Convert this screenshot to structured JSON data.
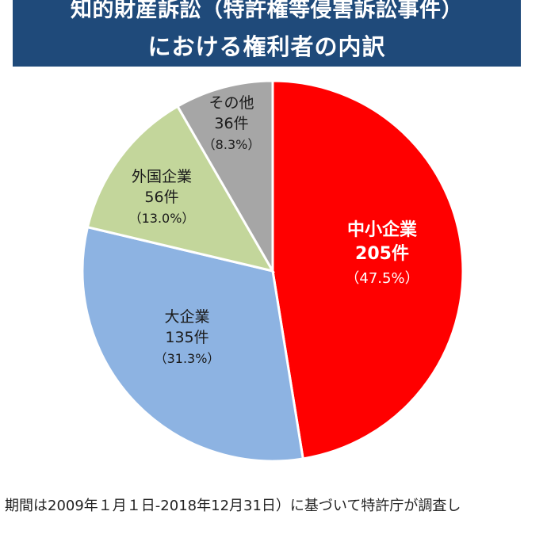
{
  "header": {
    "title_line1": "知的財産訴訟（特許権等侵害訴訟事件）",
    "title_line2": "における権利者の内訳"
  },
  "chart_data": {
    "type": "pie",
    "title": "知的財産訴訟（特許権等侵害訴訟事件）における権利者の内訳",
    "start_angle_deg": 0,
    "direction": "clockwise",
    "slices": [
      {
        "label": "中小企業",
        "count_label": "205件",
        "pct_label": "（47.5%）",
        "value": 205,
        "percent": 47.5,
        "color": "#ff0000",
        "text_color": "#ffffff",
        "bold": true
      },
      {
        "label": "大企業",
        "count_label": "135件",
        "pct_label": "（31.3%）",
        "value": 135,
        "percent": 31.3,
        "color": "#8db3e2",
        "text_color": "#1a1a1a",
        "bold": false
      },
      {
        "label": "外国企業",
        "count_label": "56件",
        "pct_label": "（13.0%）",
        "value": 56,
        "percent": 13.0,
        "color": "#c3d69b",
        "text_color": "#1a1a1a",
        "bold": false
      },
      {
        "label": "その他",
        "count_label": "36件",
        "pct_label": "（8.3%）",
        "value": 36,
        "percent": 8.3,
        "color": "#a6a6a6",
        "text_color": "#1a1a1a",
        "bold": false
      }
    ]
  },
  "footnote": "期間は2009年１月１日-2018年12月31日）に基づいて特許庁が調査し"
}
